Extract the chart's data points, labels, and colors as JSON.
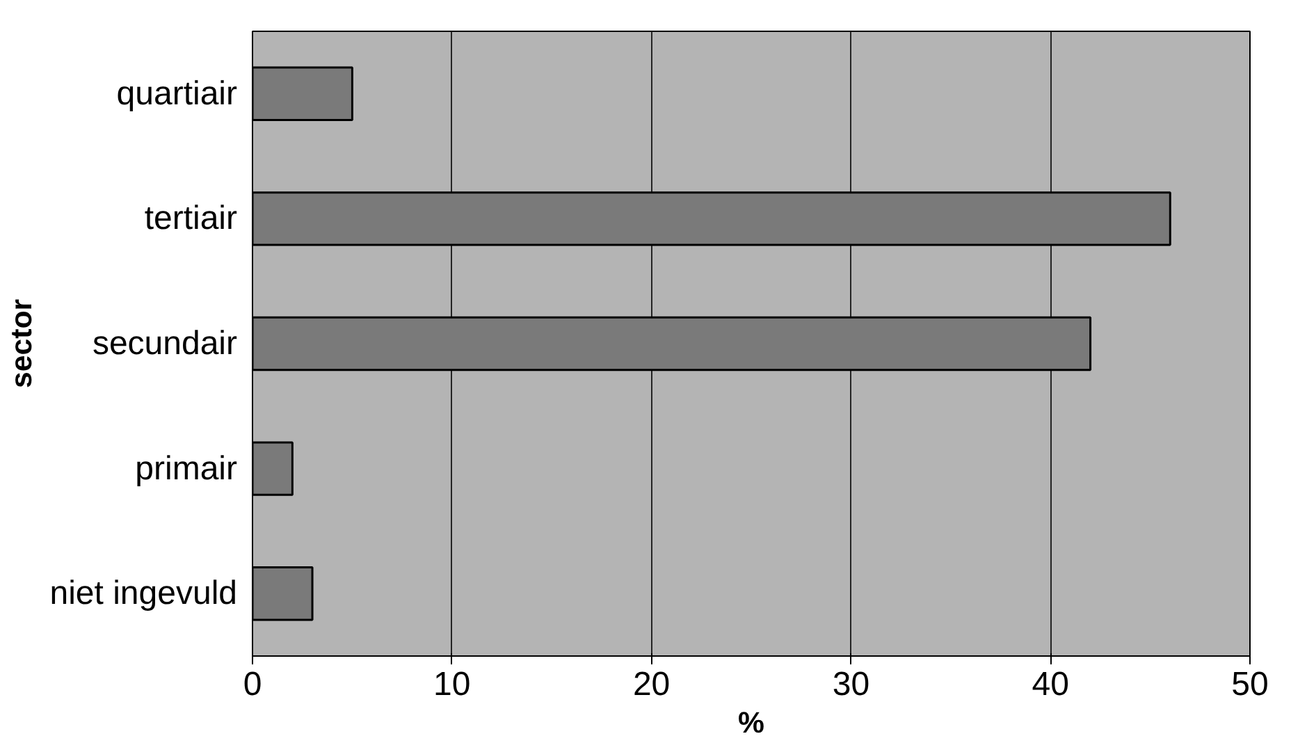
{
  "chart_data": {
    "type": "bar",
    "orientation": "horizontal",
    "xlabel": "%",
    "ylabel": "sector",
    "categories": [
      "quartiair",
      "tertiair",
      "secundair",
      "primair",
      "niet ingevuld"
    ],
    "values": [
      5,
      46,
      42,
      2,
      3
    ],
    "color": "#7a7a7a",
    "xlim": [
      0,
      50
    ],
    "xticks": [
      0,
      10,
      20,
      30,
      40,
      50
    ],
    "grid": "x"
  }
}
